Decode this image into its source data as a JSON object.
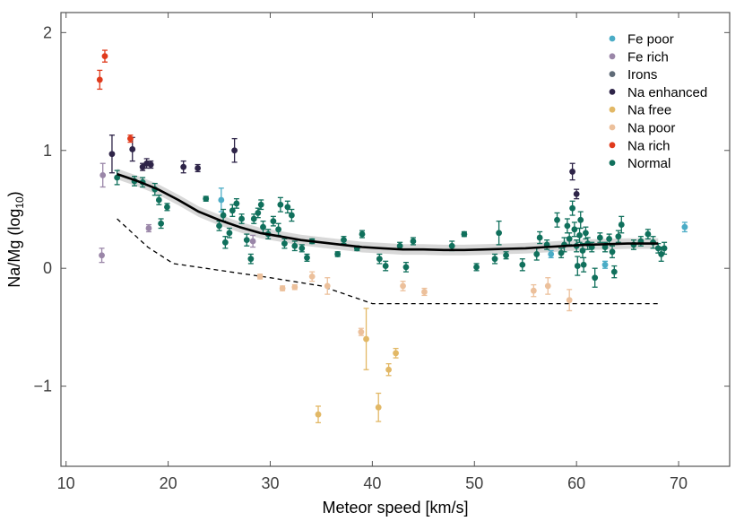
{
  "chart_data": {
    "type": "scatter",
    "xlabel": "Meteor speed [km/s]",
    "ylabel_main": "Na/Mg (log",
    "ylabel_sub": "10",
    "ylabel_tail": ")",
    "xlim": [
      9.5,
      75
    ],
    "ylim": [
      -1.68,
      2.17
    ],
    "xticks": [
      10,
      20,
      30,
      40,
      50,
      60,
      70
    ],
    "yticks": [
      -1,
      0,
      1,
      2
    ],
    "ytick_labels": [
      "−1",
      "0",
      "1",
      "2"
    ],
    "legend_position": "top-right",
    "colors": {
      "Fe poor": "#4bacc6",
      "Fe rich": "#9a86a8",
      "Irons": "#5f6b77",
      "Na enhanced": "#2e2448",
      "Na free": "#e2b866",
      "Na poor": "#ecc09b",
      "Na rich": "#e03a1c",
      "Normal": "#10705c"
    },
    "series": [
      {
        "name": "Fe poor",
        "points": [
          [
            25.2,
            0.58,
            0.1
          ],
          [
            57.5,
            0.12,
            0.03
          ],
          [
            62.8,
            0.03,
            0.03
          ],
          [
            70.6,
            0.35,
            0.04
          ]
        ]
      },
      {
        "name": "Fe rich",
        "points": [
          [
            13.6,
            0.79,
            0.1
          ],
          [
            13.5,
            0.11,
            0.06
          ],
          [
            18.1,
            0.34,
            0.03
          ],
          [
            28.3,
            0.23,
            0.05
          ]
        ]
      },
      {
        "name": "Irons",
        "points": []
      },
      {
        "name": "Na enhanced",
        "points": [
          [
            14.5,
            0.97,
            0.16
          ],
          [
            16.5,
            1.01,
            0.1
          ],
          [
            17.5,
            0.86,
            0.03
          ],
          [
            17.9,
            0.89,
            0.04
          ],
          [
            18.3,
            0.88,
            0.03
          ],
          [
            21.5,
            0.86,
            0.05
          ],
          [
            22.9,
            0.85,
            0.03
          ],
          [
            26.5,
            1.0,
            0.1
          ],
          [
            59.6,
            0.82,
            0.07
          ],
          [
            60.0,
            0.63,
            0.04
          ]
        ]
      },
      {
        "name": "Na free",
        "points": [
          [
            34.7,
            -1.24,
            0.07
          ],
          [
            39.4,
            -0.6,
            0.26
          ],
          [
            40.6,
            -1.18,
            0.12
          ],
          [
            41.6,
            -0.86,
            0.05
          ],
          [
            42.3,
            -0.72,
            0.04
          ]
        ]
      },
      {
        "name": "Na poor",
        "points": [
          [
            29.0,
            -0.07,
            0.02
          ],
          [
            31.2,
            -0.17,
            0.02
          ],
          [
            32.4,
            -0.16,
            0.02
          ],
          [
            34.1,
            -0.07,
            0.04
          ],
          [
            35.6,
            -0.15,
            0.07
          ],
          [
            38.9,
            -0.54,
            0.03
          ],
          [
            43.0,
            -0.15,
            0.04
          ],
          [
            45.1,
            -0.2,
            0.03
          ],
          [
            55.8,
            -0.19,
            0.05
          ],
          [
            57.2,
            -0.15,
            0.07
          ],
          [
            59.3,
            -0.27,
            0.09
          ]
        ]
      },
      {
        "name": "Na rich",
        "points": [
          [
            13.3,
            1.6,
            0.08
          ],
          [
            13.8,
            1.8,
            0.05
          ],
          [
            16.3,
            1.1,
            0.03
          ]
        ]
      },
      {
        "name": "Normal",
        "points": [
          [
            15.0,
            0.77,
            0.06
          ],
          [
            16.7,
            0.74,
            0.04
          ],
          [
            17.5,
            0.73,
            0.04
          ],
          [
            18.7,
            0.67,
            0.05
          ],
          [
            19.1,
            0.58,
            0.04
          ],
          [
            19.3,
            0.38,
            0.04
          ],
          [
            19.9,
            0.52,
            0.03
          ],
          [
            23.7,
            0.59,
            0.02
          ],
          [
            25.0,
            0.36,
            0.04
          ],
          [
            25.4,
            0.45,
            0.05
          ],
          [
            25.6,
            0.22,
            0.05
          ],
          [
            26.0,
            0.3,
            0.04
          ],
          [
            26.3,
            0.49,
            0.05
          ],
          [
            26.7,
            0.55,
            0.04
          ],
          [
            27.2,
            0.42,
            0.04
          ],
          [
            27.7,
            0.24,
            0.05
          ],
          [
            28.1,
            0.08,
            0.04
          ],
          [
            28.4,
            0.42,
            0.04
          ],
          [
            28.8,
            0.47,
            0.04
          ],
          [
            29.1,
            0.54,
            0.04
          ],
          [
            29.3,
            0.35,
            0.05
          ],
          [
            29.8,
            0.29,
            0.04
          ],
          [
            30.3,
            0.4,
            0.04
          ],
          [
            30.8,
            0.33,
            0.05
          ],
          [
            31.0,
            0.54,
            0.06
          ],
          [
            31.4,
            0.21,
            0.04
          ],
          [
            31.7,
            0.52,
            0.05
          ],
          [
            32.1,
            0.45,
            0.05
          ],
          [
            32.4,
            0.19,
            0.04
          ],
          [
            33.1,
            0.17,
            0.03
          ],
          [
            33.6,
            0.09,
            0.03
          ],
          [
            34.1,
            0.23,
            0.02
          ],
          [
            36.6,
            0.12,
            0.02
          ],
          [
            37.2,
            0.24,
            0.03
          ],
          [
            38.5,
            0.17,
            0.02
          ],
          [
            39.0,
            0.29,
            0.03
          ],
          [
            40.7,
            0.08,
            0.04
          ],
          [
            41.3,
            0.02,
            0.04
          ],
          [
            42.7,
            0.19,
            0.03
          ],
          [
            43.3,
            0.01,
            0.04
          ],
          [
            44.0,
            0.23,
            0.03
          ],
          [
            47.8,
            0.19,
            0.04
          ],
          [
            49.0,
            0.29,
            0.02
          ],
          [
            50.2,
            0.01,
            0.03
          ],
          [
            52.0,
            0.08,
            0.04
          ],
          [
            52.4,
            0.3,
            0.1
          ],
          [
            53.1,
            0.11,
            0.03
          ],
          [
            54.7,
            0.03,
            0.05
          ],
          [
            56.1,
            0.12,
            0.05
          ],
          [
            56.4,
            0.26,
            0.05
          ],
          [
            57.1,
            0.2,
            0.04
          ],
          [
            58.1,
            0.41,
            0.06
          ],
          [
            58.5,
            0.13,
            0.04
          ],
          [
            58.8,
            0.2,
            0.06
          ],
          [
            59.1,
            0.36,
            0.06
          ],
          [
            59.3,
            0.25,
            0.05
          ],
          [
            59.6,
            0.51,
            0.06
          ],
          [
            59.8,
            0.33,
            0.06
          ],
          [
            60.0,
            0.19,
            0.05
          ],
          [
            60.1,
            0.02,
            0.08
          ],
          [
            60.3,
            0.28,
            0.06
          ],
          [
            60.4,
            0.41,
            0.07
          ],
          [
            60.6,
            0.15,
            0.06
          ],
          [
            60.7,
            0.03,
            0.06
          ],
          [
            60.9,
            0.3,
            0.05
          ],
          [
            61.1,
            0.21,
            0.05
          ],
          [
            61.5,
            0.18,
            0.04
          ],
          [
            61.8,
            -0.08,
            0.08
          ],
          [
            62.3,
            0.26,
            0.04
          ],
          [
            62.8,
            0.18,
            0.04
          ],
          [
            63.2,
            0.25,
            0.04
          ],
          [
            63.5,
            0.14,
            0.05
          ],
          [
            63.7,
            -0.03,
            0.05
          ],
          [
            64.1,
            0.27,
            0.05
          ],
          [
            64.4,
            0.37,
            0.07
          ],
          [
            65.6,
            0.2,
            0.04
          ],
          [
            66.3,
            0.23,
            0.04
          ],
          [
            67.0,
            0.29,
            0.04
          ],
          [
            67.5,
            0.22,
            0.05
          ],
          [
            68.0,
            0.17,
            0.04
          ],
          [
            68.3,
            0.12,
            0.06
          ],
          [
            68.6,
            0.17,
            0.05
          ]
        ]
      }
    ],
    "fit_curve": {
      "x": [
        15,
        17,
        19,
        21,
        23,
        25,
        27,
        29,
        31,
        33,
        35,
        37,
        39,
        41,
        43,
        45,
        47,
        49,
        51,
        53,
        55,
        57,
        59,
        61,
        63,
        65,
        67,
        68
      ],
      "y": [
        0.8,
        0.74,
        0.67,
        0.58,
        0.48,
        0.41,
        0.35,
        0.3,
        0.27,
        0.24,
        0.22,
        0.2,
        0.18,
        0.17,
        0.16,
        0.16,
        0.155,
        0.155,
        0.16,
        0.165,
        0.17,
        0.18,
        0.19,
        0.2,
        0.205,
        0.21,
        0.21,
        0.21
      ],
      "band": 0.045
    },
    "threshold_line": {
      "x": [
        15,
        18,
        20.5,
        30,
        35,
        40,
        55,
        60,
        68
      ],
      "y": [
        0.42,
        0.18,
        0.04,
        -0.08,
        -0.15,
        -0.3,
        -0.3,
        -0.3,
        -0.3
      ]
    }
  }
}
